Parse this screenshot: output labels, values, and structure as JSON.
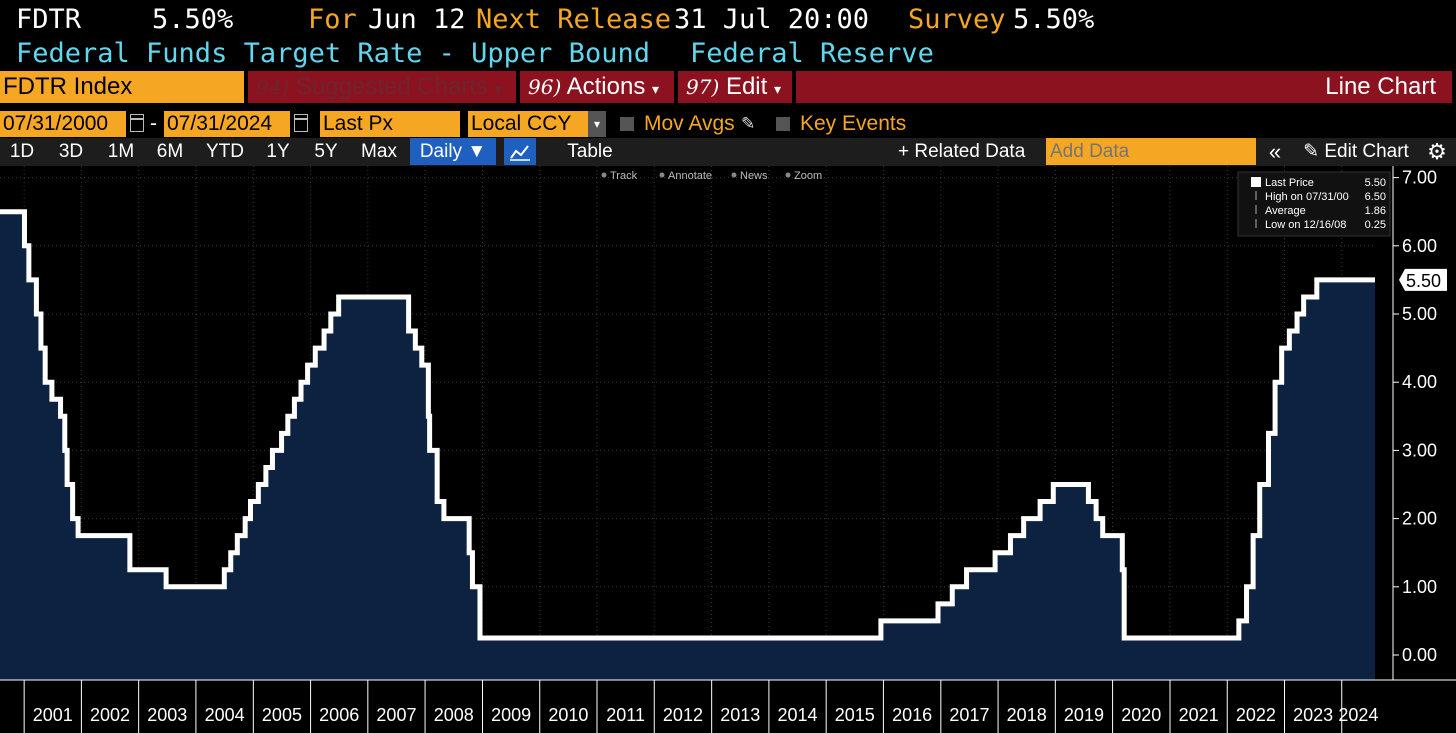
{
  "header": {
    "ticker": "FDTR",
    "last_value": "5.50%",
    "for_label": "For",
    "for_date": "Jun 12",
    "next_release_label": "Next Release",
    "next_release_value": "31 Jul 20:00",
    "survey_label": "Survey",
    "survey_value": "5.50%",
    "description": "Federal Funds Target Rate - Upper Bound",
    "source": "Federal Reserve"
  },
  "toolbar": {
    "security": "FDTR Index",
    "suggested_num": "94)",
    "suggested_label": "Suggested Charts",
    "actions_num": "96)",
    "actions_label": "Actions",
    "edit_num": "97)",
    "edit_label": "Edit",
    "chart_type": "Line Chart"
  },
  "controls": {
    "start_date": "07/31/2000",
    "separator": "-",
    "end_date": "07/31/2024",
    "field": "Last Px",
    "currency": "Local CCY",
    "mov_avgs": "Mov Avgs",
    "key_events": "Key Events"
  },
  "periods": [
    "1D",
    "3D",
    "1M",
    "6M",
    "YTD",
    "1Y",
    "5Y",
    "Max"
  ],
  "frequency": "Daily ▼",
  "table_label": "Table",
  "related_data": "+ Related Data",
  "add_data_placeholder": "Add Data",
  "collapse_label": "«",
  "edit_chart": "Edit Chart",
  "chart_tools": [
    "Track",
    "Annotate",
    "News",
    "Zoom"
  ],
  "legend": [
    {
      "label": "Last Price",
      "value": "5.50"
    },
    {
      "label": "High on 07/31/00",
      "value": "6.50"
    },
    {
      "label": "Average",
      "value": "1.86"
    },
    {
      "label": "Low on 12/16/08",
      "value": "0.25"
    }
  ],
  "last_price_tag": "5.50",
  "colors": {
    "line": "#ffffff",
    "fill": "#0d2240",
    "accent_orange": "#f5a623",
    "toolbar_red": "#8d1220",
    "cyan": "#5fd7ef"
  },
  "chart_data": {
    "type": "area",
    "title": "",
    "xlabel": "",
    "ylabel": "",
    "ylim": [
      -0.3,
      7.1
    ],
    "y_ticks": [
      "0.00",
      "1.00",
      "2.00",
      "3.00",
      "4.00",
      "5.00",
      "6.00",
      "7.00"
    ],
    "x_ticks": [
      "2001",
      "2002",
      "2003",
      "2004",
      "2005",
      "2006",
      "2007",
      "2008",
      "2009",
      "2010",
      "2011",
      "2012",
      "2013",
      "2014",
      "2015",
      "2016",
      "2017",
      "2018",
      "2019",
      "2020",
      "2021",
      "2022",
      "2023",
      "2024"
    ],
    "xlim": [
      "2000-07-31",
      "2024-07-31"
    ],
    "grid": true,
    "legend_position": "top-right",
    "series": [
      {
        "name": "Last Price",
        "step": true,
        "points": [
          [
            "2000-07-31",
            6.5
          ],
          [
            "2001-01-03",
            6.0
          ],
          [
            "2001-01-31",
            5.5
          ],
          [
            "2001-03-20",
            5.0
          ],
          [
            "2001-04-18",
            4.5
          ],
          [
            "2001-05-15",
            4.0
          ],
          [
            "2001-06-27",
            3.75
          ],
          [
            "2001-08-21",
            3.5
          ],
          [
            "2001-09-17",
            3.0
          ],
          [
            "2001-10-02",
            2.5
          ],
          [
            "2001-11-06",
            2.0
          ],
          [
            "2001-12-11",
            1.75
          ],
          [
            "2002-11-06",
            1.25
          ],
          [
            "2003-06-25",
            1.0
          ],
          [
            "2004-06-30",
            1.25
          ],
          [
            "2004-08-10",
            1.5
          ],
          [
            "2004-09-21",
            1.75
          ],
          [
            "2004-11-10",
            2.0
          ],
          [
            "2004-12-14",
            2.25
          ],
          [
            "2005-02-02",
            2.5
          ],
          [
            "2005-03-22",
            2.75
          ],
          [
            "2005-05-03",
            3.0
          ],
          [
            "2005-06-30",
            3.25
          ],
          [
            "2005-08-09",
            3.5
          ],
          [
            "2005-09-20",
            3.75
          ],
          [
            "2005-11-01",
            4.0
          ],
          [
            "2005-12-13",
            4.25
          ],
          [
            "2006-01-31",
            4.5
          ],
          [
            "2006-03-28",
            4.75
          ],
          [
            "2006-05-10",
            5.0
          ],
          [
            "2006-06-29",
            5.25
          ],
          [
            "2007-09-18",
            4.75
          ],
          [
            "2007-10-31",
            4.5
          ],
          [
            "2007-12-11",
            4.25
          ],
          [
            "2008-01-22",
            3.5
          ],
          [
            "2008-01-30",
            3.0
          ],
          [
            "2008-03-18",
            2.25
          ],
          [
            "2008-04-30",
            2.0
          ],
          [
            "2008-10-08",
            1.5
          ],
          [
            "2008-10-29",
            1.0
          ],
          [
            "2008-12-16",
            0.25
          ],
          [
            "2015-12-16",
            0.5
          ],
          [
            "2016-12-14",
            0.75
          ],
          [
            "2017-03-15",
            1.0
          ],
          [
            "2017-06-14",
            1.25
          ],
          [
            "2017-12-13",
            1.5
          ],
          [
            "2018-03-21",
            1.75
          ],
          [
            "2018-06-13",
            2.0
          ],
          [
            "2018-09-26",
            2.25
          ],
          [
            "2018-12-19",
            2.5
          ],
          [
            "2019-07-31",
            2.25
          ],
          [
            "2019-09-18",
            2.0
          ],
          [
            "2019-10-30",
            1.75
          ],
          [
            "2020-03-03",
            1.25
          ],
          [
            "2020-03-15",
            0.25
          ],
          [
            "2022-03-16",
            0.5
          ],
          [
            "2022-05-04",
            1.0
          ],
          [
            "2022-06-15",
            1.75
          ],
          [
            "2022-07-27",
            2.5
          ],
          [
            "2022-09-21",
            3.25
          ],
          [
            "2022-11-02",
            4.0
          ],
          [
            "2022-12-14",
            4.5
          ],
          [
            "2023-02-01",
            4.75
          ],
          [
            "2023-03-22",
            5.0
          ],
          [
            "2023-05-03",
            5.25
          ],
          [
            "2023-07-26",
            5.5
          ],
          [
            "2024-07-31",
            5.5
          ]
        ]
      }
    ]
  }
}
